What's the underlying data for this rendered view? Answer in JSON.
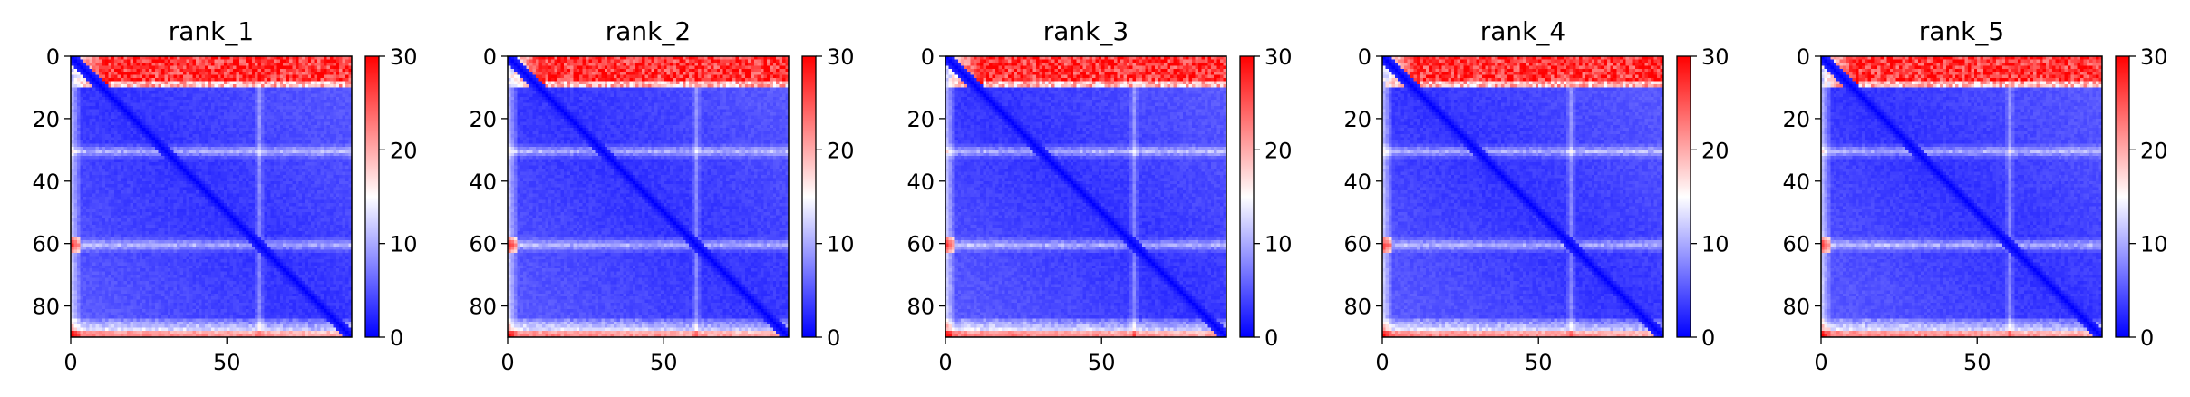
{
  "chart_data": [
    {
      "type": "heatmap",
      "title": "rank_1",
      "xlabel": "",
      "ylabel": "",
      "x_range": [
        0,
        90
      ],
      "y_range": [
        0,
        90
      ],
      "y_inverted": true,
      "x_ticks": [
        "0",
        "50"
      ],
      "y_ticks": [
        "0",
        "20",
        "40",
        "60",
        "80"
      ],
      "colorbar": {
        "ticks": [
          "0",
          "10",
          "20",
          "30"
        ],
        "range": [
          0,
          30
        ],
        "colormap": [
          "#0000ff",
          "#ffffff",
          "#ff0000"
        ]
      },
      "features": {
        "high_band_rows": [
          0,
          9
        ],
        "low_diagonal": true,
        "light_rows": [
          30,
          60
        ],
        "light_columns": [
          60
        ],
        "bottom_light_rows": [
          84,
          90
        ]
      }
    },
    {
      "type": "heatmap",
      "title": "rank_2",
      "xlabel": "",
      "ylabel": "",
      "x_range": [
        0,
        90
      ],
      "y_range": [
        0,
        90
      ],
      "y_inverted": true,
      "x_ticks": [
        "0",
        "50"
      ],
      "y_ticks": [
        "0",
        "20",
        "40",
        "60",
        "80"
      ],
      "colorbar": {
        "ticks": [
          "0",
          "10",
          "20",
          "30"
        ],
        "range": [
          0,
          30
        ],
        "colormap": [
          "#0000ff",
          "#ffffff",
          "#ff0000"
        ]
      },
      "features": {
        "high_band_rows": [
          0,
          9
        ],
        "low_diagonal": true,
        "light_rows": [
          30,
          60
        ],
        "light_columns": [
          60
        ],
        "bottom_light_rows": [
          84,
          90
        ]
      }
    },
    {
      "type": "heatmap",
      "title": "rank_3",
      "xlabel": "",
      "ylabel": "",
      "x_range": [
        0,
        90
      ],
      "y_range": [
        0,
        90
      ],
      "y_inverted": true,
      "x_ticks": [
        "0",
        "50"
      ],
      "y_ticks": [
        "0",
        "20",
        "40",
        "60",
        "80"
      ],
      "colorbar": {
        "ticks": [
          "0",
          "10",
          "20",
          "30"
        ],
        "range": [
          0,
          30
        ],
        "colormap": [
          "#0000ff",
          "#ffffff",
          "#ff0000"
        ]
      },
      "features": {
        "high_band_rows": [
          0,
          9
        ],
        "low_diagonal": true,
        "light_rows": [
          30,
          60
        ],
        "light_columns": [
          60
        ],
        "bottom_light_rows": [
          84,
          90
        ]
      }
    },
    {
      "type": "heatmap",
      "title": "rank_4",
      "xlabel": "",
      "ylabel": "",
      "x_range": [
        0,
        90
      ],
      "y_range": [
        0,
        90
      ],
      "y_inverted": true,
      "x_ticks": [
        "0",
        "50"
      ],
      "y_ticks": [
        "0",
        "20",
        "40",
        "60",
        "80"
      ],
      "colorbar": {
        "ticks": [
          "0",
          "10",
          "20",
          "30"
        ],
        "range": [
          0,
          30
        ],
        "colormap": [
          "#0000ff",
          "#ffffff",
          "#ff0000"
        ]
      },
      "features": {
        "high_band_rows": [
          0,
          9
        ],
        "low_diagonal": true,
        "light_rows": [
          30,
          60
        ],
        "light_columns": [
          60
        ],
        "bottom_light_rows": [
          84,
          90
        ]
      }
    },
    {
      "type": "heatmap",
      "title": "rank_5",
      "xlabel": "",
      "ylabel": "",
      "x_range": [
        0,
        90
      ],
      "y_range": [
        0,
        90
      ],
      "y_inverted": true,
      "x_ticks": [
        "0",
        "50"
      ],
      "y_ticks": [
        "0",
        "20",
        "40",
        "60",
        "80"
      ],
      "colorbar": {
        "ticks": [
          "0",
          "10",
          "20",
          "30"
        ],
        "range": [
          0,
          30
        ],
        "colormap": [
          "#0000ff",
          "#ffffff",
          "#ff0000"
        ]
      },
      "features": {
        "high_band_rows": [
          0,
          9
        ],
        "low_diagonal": true,
        "light_rows": [
          30,
          60
        ],
        "light_columns": [
          60
        ],
        "bottom_light_rows": [
          84,
          90
        ]
      }
    }
  ]
}
